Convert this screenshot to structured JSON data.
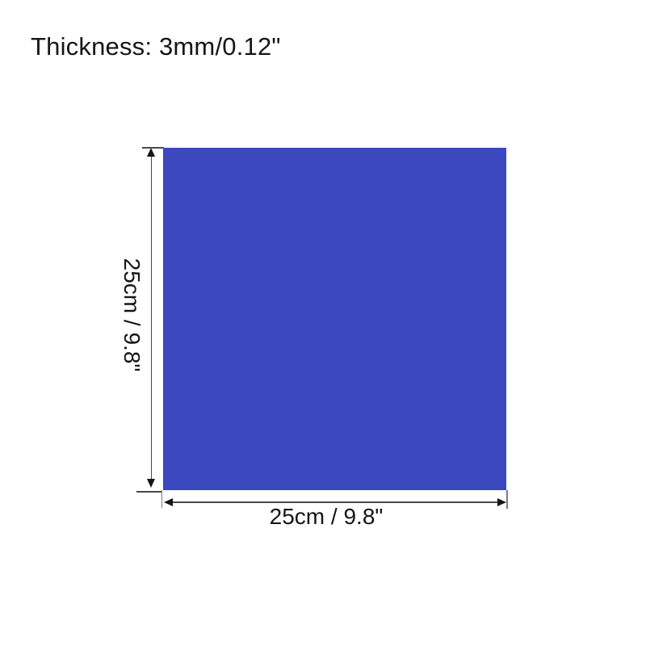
{
  "header": {
    "thickness_label": "Thickness: 3mm/0.12\""
  },
  "product": {
    "name": "blue square sheet",
    "fill_color": "#3b48be"
  },
  "dimensions": {
    "vertical": {
      "label": "25cm / 9.8\""
    },
    "horizontal": {
      "label": "25cm / 9.8\""
    }
  },
  "annotation": {
    "line_color": "#4a4a4a",
    "extension_tick_color": "#7a7a7a",
    "arrow_color": "#151515",
    "text_color": "#151515"
  }
}
